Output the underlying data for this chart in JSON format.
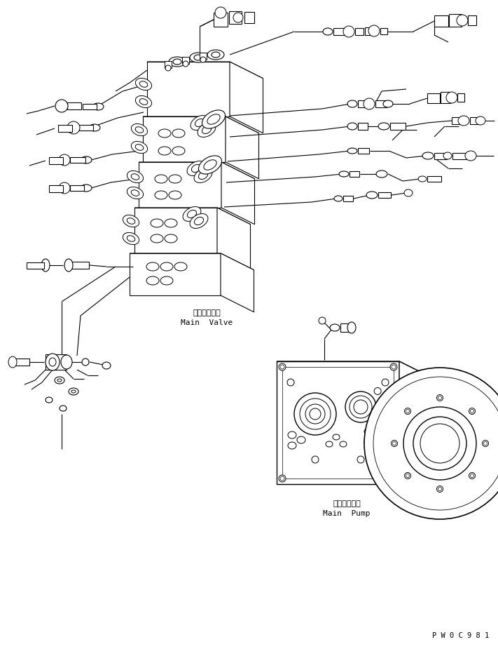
{
  "bg_color": "#ffffff",
  "line_color": "#000000",
  "fig_width": 7.11,
  "fig_height": 9.25,
  "dpi": 100,
  "watermark": "P W 0 C 9 8 1",
  "main_valve_label_jp": "メインバルブ",
  "main_valve_label_en": "Main  Valve",
  "main_pump_label_jp": "メインポンプ",
  "main_pump_label_en": "Main  Pump"
}
